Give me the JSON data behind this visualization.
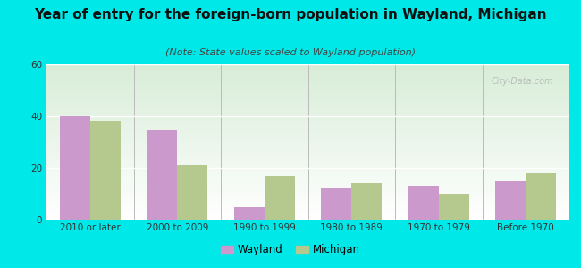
{
  "title": "Year of entry for the foreign-born population in Wayland, Michigan",
  "subtitle": "(Note: State values scaled to Wayland population)",
  "categories": [
    "2010 or later",
    "2000 to 2009",
    "1990 to 1999",
    "1980 to 1989",
    "1970 to 1979",
    "Before 1970"
  ],
  "wayland_values": [
    40,
    35,
    5,
    12,
    13,
    15
  ],
  "michigan_values": [
    38,
    21,
    17,
    14,
    10,
    18
  ],
  "wayland_color": "#cc99cc",
  "michigan_color": "#b5c98e",
  "ylim": [
    0,
    60
  ],
  "yticks": [
    0,
    20,
    40,
    60
  ],
  "background_outer": "#00e8e8",
  "gradient_top": "#d8edd8",
  "gradient_bottom": "#ffffff",
  "bar_width": 0.35,
  "legend_wayland": "Wayland",
  "legend_michigan": "Michigan",
  "title_fontsize": 11,
  "subtitle_fontsize": 8,
  "tick_fontsize": 7.5,
  "legend_fontsize": 8.5,
  "watermark": "City-Data.com"
}
